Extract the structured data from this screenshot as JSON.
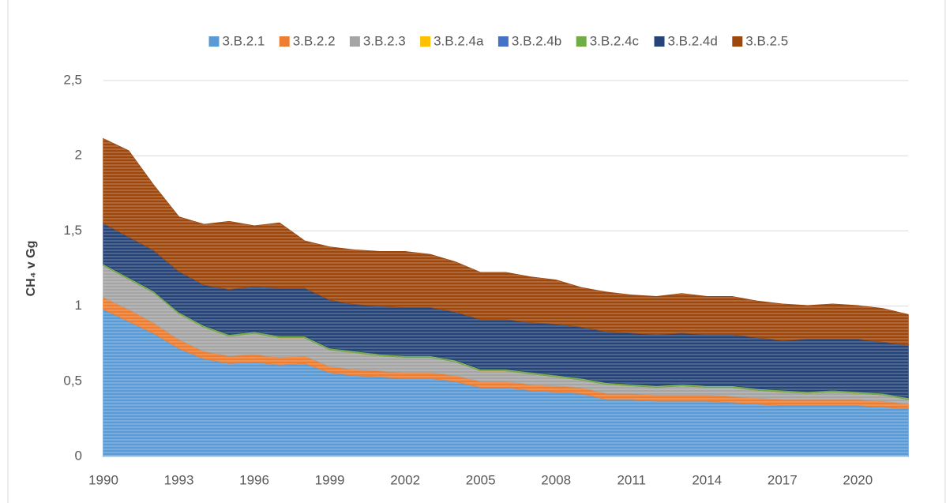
{
  "chart_data": {
    "type": "stacked_area",
    "y_label": "CH₄ v Gg",
    "x": [
      1990,
      1991,
      1992,
      1993,
      1994,
      1995,
      1996,
      1997,
      1998,
      1999,
      2000,
      2001,
      2002,
      2003,
      2004,
      2005,
      2006,
      2007,
      2008,
      2009,
      2010,
      2011,
      2012,
      2013,
      2014,
      2015,
      2016,
      2017,
      2018,
      2019,
      2020,
      2021,
      2022
    ],
    "xlim": [
      1990,
      2022
    ],
    "xticks": [
      1990,
      1993,
      1996,
      1999,
      2002,
      2005,
      2008,
      2011,
      2014,
      2017,
      2020
    ],
    "ylim": [
      0,
      2.5
    ],
    "yticks": [
      0,
      {
        "value": 0.5,
        "label": "0,5"
      },
      1,
      {
        "value": 1.5,
        "label": "1,5"
      },
      2,
      {
        "value": 2.5,
        "label": "2,5"
      }
    ],
    "grid": true,
    "legend": "top",
    "series": [
      {
        "name": "3.B.2.1",
        "color": "#5b9bd5",
        "values": [
          0.98,
          0.9,
          0.82,
          0.72,
          0.65,
          0.62,
          0.63,
          0.61,
          0.62,
          0.56,
          0.54,
          0.53,
          0.52,
          0.52,
          0.5,
          0.46,
          0.46,
          0.44,
          0.43,
          0.42,
          0.38,
          0.38,
          0.37,
          0.37,
          0.37,
          0.36,
          0.35,
          0.34,
          0.34,
          0.34,
          0.34,
          0.33,
          0.32
        ]
      },
      {
        "name": "3.B.2.2",
        "color": "#ed7d31",
        "values": [
          0.08,
          0.08,
          0.07,
          0.06,
          0.05,
          0.05,
          0.05,
          0.05,
          0.05,
          0.04,
          0.04,
          0.04,
          0.04,
          0.04,
          0.04,
          0.04,
          0.04,
          0.04,
          0.04,
          0.04,
          0.04,
          0.04,
          0.04,
          0.04,
          0.04,
          0.04,
          0.04,
          0.04,
          0.04,
          0.04,
          0.04,
          0.04,
          0.03
        ]
      },
      {
        "name": "3.B.2.3",
        "color": "#a5a5a5",
        "values": [
          0.21,
          0.2,
          0.2,
          0.17,
          0.16,
          0.13,
          0.14,
          0.13,
          0.12,
          0.11,
          0.11,
          0.1,
          0.1,
          0.1,
          0.09,
          0.07,
          0.07,
          0.07,
          0.06,
          0.05,
          0.06,
          0.05,
          0.05,
          0.06,
          0.05,
          0.06,
          0.05,
          0.05,
          0.04,
          0.05,
          0.04,
          0.04,
          0.03
        ]
      },
      {
        "name": "3.B.2.4a",
        "color": "#ffc000",
        "values": [
          0.001,
          0.001,
          0.001,
          0.001,
          0.001,
          0.001,
          0.001,
          0.001,
          0.001,
          0.001,
          0.001,
          0.001,
          0.001,
          0.001,
          0.001,
          0.001,
          0.001,
          0.001,
          0.001,
          0.001,
          0.001,
          0.001,
          0.001,
          0.001,
          0.001,
          0.001,
          0.001,
          0.001,
          0.001,
          0.001,
          0.001,
          0.001,
          0.001
        ]
      },
      {
        "name": "3.B.2.4b",
        "color": "#4472c4",
        "values": [
          0.001,
          0.001,
          0.001,
          0.001,
          0.001,
          0.001,
          0.001,
          0.001,
          0.001,
          0.001,
          0.001,
          0.001,
          0.001,
          0.001,
          0.001,
          0.001,
          0.001,
          0.001,
          0.001,
          0.001,
          0.001,
          0.001,
          0.001,
          0.001,
          0.001,
          0.001,
          0.001,
          0.001,
          0.001,
          0.001,
          0.001,
          0.001,
          0.001
        ]
      },
      {
        "name": "3.B.2.4c",
        "color": "#70ad47",
        "values": [
          0.01,
          0.01,
          0.01,
          0.01,
          0.01,
          0.01,
          0.01,
          0.01,
          0.01,
          0.01,
          0.01,
          0.01,
          0.01,
          0.01,
          0.01,
          0.01,
          0.01,
          0.01,
          0.01,
          0.01,
          0.01,
          0.01,
          0.01,
          0.01,
          0.01,
          0.01,
          0.01,
          0.01,
          0.01,
          0.01,
          0.01,
          0.01,
          0.01
        ]
      },
      {
        "name": "3.B.2.4d",
        "color": "#264478",
        "values": [
          0.27,
          0.27,
          0.27,
          0.27,
          0.27,
          0.3,
          0.3,
          0.32,
          0.32,
          0.32,
          0.31,
          0.32,
          0.32,
          0.32,
          0.32,
          0.33,
          0.33,
          0.33,
          0.34,
          0.34,
          0.34,
          0.34,
          0.34,
          0.34,
          0.34,
          0.34,
          0.34,
          0.33,
          0.35,
          0.34,
          0.35,
          0.34,
          0.35
        ]
      },
      {
        "name": "3.B.2.5",
        "color": "#9e480e",
        "values": [
          0.56,
          0.57,
          0.43,
          0.36,
          0.4,
          0.45,
          0.4,
          0.43,
          0.31,
          0.35,
          0.36,
          0.36,
          0.37,
          0.35,
          0.33,
          0.31,
          0.31,
          0.3,
          0.29,
          0.26,
          0.26,
          0.25,
          0.25,
          0.26,
          0.25,
          0.25,
          0.24,
          0.24,
          0.22,
          0.23,
          0.22,
          0.22,
          0.2
        ]
      }
    ]
  }
}
